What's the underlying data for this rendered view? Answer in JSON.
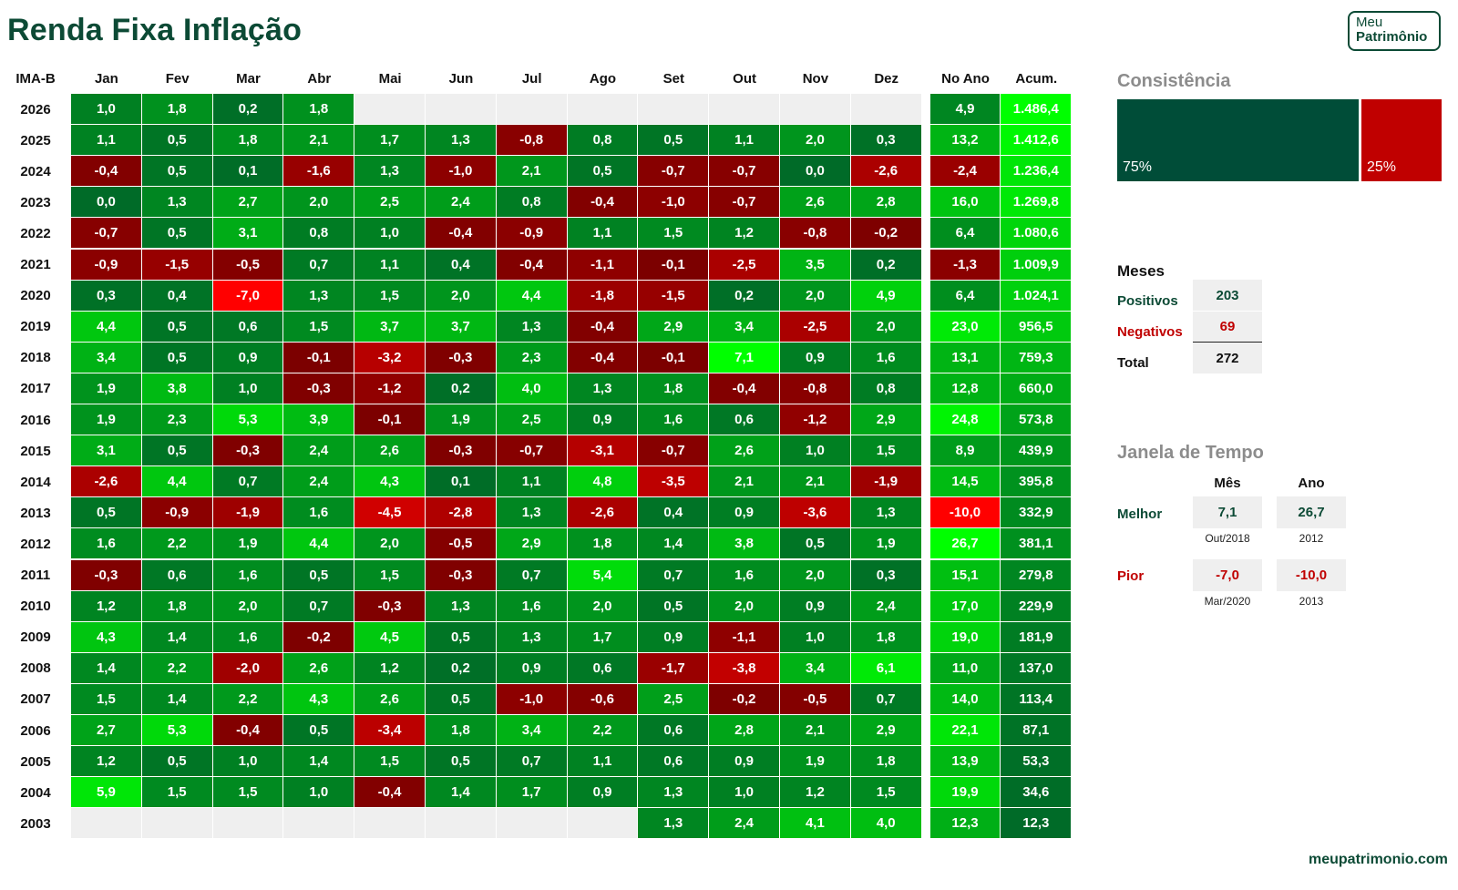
{
  "header": {
    "title": "Renda Fixa Inflação",
    "logo_line1": "Meu",
    "logo_line2": "Patrimônio"
  },
  "chart_data": {
    "type": "heatmap",
    "index_label": "IMA-B",
    "columns": [
      "Jan",
      "Fev",
      "Mar",
      "Abr",
      "Mai",
      "Jun",
      "Jul",
      "Ago",
      "Set",
      "Out",
      "Nov",
      "Dez"
    ],
    "summary_columns": [
      "No Ano",
      "Acum."
    ],
    "rows": [
      {
        "year": "2026",
        "values": [
          "1,0",
          "1,8",
          "0,2",
          "1,8",
          "",
          "",
          "",
          "",
          "",
          "",
          "",
          ""
        ],
        "no_ano": "4,9",
        "acum": "1.486,4"
      },
      {
        "year": "2025",
        "values": [
          "1,1",
          "0,5",
          "1,8",
          "2,1",
          "1,7",
          "1,3",
          "-0,8",
          "0,8",
          "0,5",
          "1,1",
          "2,0",
          "0,3"
        ],
        "no_ano": "13,2",
        "acum": "1.412,6"
      },
      {
        "year": "2024",
        "values": [
          "-0,4",
          "0,5",
          "0,1",
          "-1,6",
          "1,3",
          "-1,0",
          "2,1",
          "0,5",
          "-0,7",
          "-0,7",
          "0,0",
          "-2,6"
        ],
        "no_ano": "-2,4",
        "acum": "1.236,4"
      },
      {
        "year": "2023",
        "values": [
          "0,0",
          "1,3",
          "2,7",
          "2,0",
          "2,5",
          "2,4",
          "0,8",
          "-0,4",
          "-1,0",
          "-0,7",
          "2,6",
          "2,8"
        ],
        "no_ano": "16,0",
        "acum": "1.269,8"
      },
      {
        "year": "2022",
        "values": [
          "-0,7",
          "0,5",
          "3,1",
          "0,8",
          "1,0",
          "-0,4",
          "-0,9",
          "1,1",
          "1,5",
          "1,2",
          "-0,8",
          "-0,2"
        ],
        "no_ano": "6,4",
        "acum": "1.080,6"
      },
      {
        "year": "2021",
        "values": [
          "-0,9",
          "-1,5",
          "-0,5",
          "0,7",
          "1,1",
          "0,4",
          "-0,4",
          "-1,1",
          "-0,1",
          "-2,5",
          "3,5",
          "0,2"
        ],
        "no_ano": "-1,3",
        "acum": "1.009,9"
      },
      {
        "year": "2020",
        "values": [
          "0,3",
          "0,4",
          "-7,0",
          "1,3",
          "1,5",
          "2,0",
          "4,4",
          "-1,8",
          "-1,5",
          "0,2",
          "2,0",
          "4,9"
        ],
        "no_ano": "6,4",
        "acum": "1.024,1"
      },
      {
        "year": "2019",
        "values": [
          "4,4",
          "0,5",
          "0,6",
          "1,5",
          "3,7",
          "3,7",
          "1,3",
          "-0,4",
          "2,9",
          "3,4",
          "-2,5",
          "2,0"
        ],
        "no_ano": "23,0",
        "acum": "956,5"
      },
      {
        "year": "2018",
        "values": [
          "3,4",
          "0,5",
          "0,9",
          "-0,1",
          "-3,2",
          "-0,3",
          "2,3",
          "-0,4",
          "-0,1",
          "7,1",
          "0,9",
          "1,6"
        ],
        "no_ano": "13,1",
        "acum": "759,3"
      },
      {
        "year": "2017",
        "values": [
          "1,9",
          "3,8",
          "1,0",
          "-0,3",
          "-1,2",
          "0,2",
          "4,0",
          "1,3",
          "1,8",
          "-0,4",
          "-0,8",
          "0,8"
        ],
        "no_ano": "12,8",
        "acum": "660,0"
      },
      {
        "year": "2016",
        "values": [
          "1,9",
          "2,3",
          "5,3",
          "3,9",
          "-0,1",
          "1,9",
          "2,5",
          "0,9",
          "1,6",
          "0,6",
          "-1,2",
          "2,9"
        ],
        "no_ano": "24,8",
        "acum": "573,8"
      },
      {
        "year": "2015",
        "values": [
          "3,1",
          "0,5",
          "-0,3",
          "2,4",
          "2,6",
          "-0,3",
          "-0,7",
          "-3,1",
          "-0,7",
          "2,6",
          "1,0",
          "1,5"
        ],
        "no_ano": "8,9",
        "acum": "439,9"
      },
      {
        "year": "2014",
        "values": [
          "-2,6",
          "4,4",
          "0,7",
          "2,4",
          "4,3",
          "0,1",
          "1,1",
          "4,8",
          "-3,5",
          "2,1",
          "2,1",
          "-1,9"
        ],
        "no_ano": "14,5",
        "acum": "395,8"
      },
      {
        "year": "2013",
        "values": [
          "0,5",
          "-0,9",
          "-1,9",
          "1,6",
          "-4,5",
          "-2,8",
          "1,3",
          "-2,6",
          "0,4",
          "0,9",
          "-3,6",
          "1,3"
        ],
        "no_ano": "-10,0",
        "acum": "332,9"
      },
      {
        "year": "2012",
        "values": [
          "1,6",
          "2,2",
          "1,9",
          "4,4",
          "2,0",
          "-0,5",
          "2,9",
          "1,8",
          "1,4",
          "3,8",
          "0,5",
          "1,9"
        ],
        "no_ano": "26,7",
        "acum": "381,1"
      },
      {
        "year": "2011",
        "values": [
          "-0,3",
          "0,6",
          "1,6",
          "0,5",
          "1,5",
          "-0,3",
          "0,7",
          "5,4",
          "0,7",
          "1,6",
          "2,0",
          "0,3"
        ],
        "no_ano": "15,1",
        "acum": "279,8"
      },
      {
        "year": "2010",
        "values": [
          "1,2",
          "1,8",
          "2,0",
          "0,7",
          "-0,3",
          "1,3",
          "1,6",
          "2,0",
          "0,5",
          "2,0",
          "0,9",
          "2,4"
        ],
        "no_ano": "17,0",
        "acum": "229,9"
      },
      {
        "year": "2009",
        "values": [
          "4,3",
          "1,4",
          "1,6",
          "-0,2",
          "4,5",
          "0,5",
          "1,3",
          "1,7",
          "0,9",
          "-1,1",
          "1,0",
          "1,8"
        ],
        "no_ano": "19,0",
        "acum": "181,9"
      },
      {
        "year": "2008",
        "values": [
          "1,4",
          "2,2",
          "-2,0",
          "2,6",
          "1,2",
          "0,2",
          "0,9",
          "0,6",
          "-1,7",
          "-3,8",
          "3,4",
          "6,1"
        ],
        "no_ano": "11,0",
        "acum": "137,0"
      },
      {
        "year": "2007",
        "values": [
          "1,5",
          "1,4",
          "2,2",
          "4,3",
          "2,6",
          "0,5",
          "-1,0",
          "-0,6",
          "2,5",
          "-0,2",
          "-0,5",
          "0,7"
        ],
        "no_ano": "14,0",
        "acum": "113,4"
      },
      {
        "year": "2006",
        "values": [
          "2,7",
          "5,3",
          "-0,4",
          "0,5",
          "-3,4",
          "1,8",
          "3,4",
          "2,2",
          "0,6",
          "2,8",
          "2,1",
          "2,9"
        ],
        "no_ano": "22,1",
        "acum": "87,1"
      },
      {
        "year": "2005",
        "values": [
          "1,2",
          "0,5",
          "1,0",
          "1,4",
          "1,5",
          "0,5",
          "0,7",
          "1,1",
          "0,6",
          "0,9",
          "1,9",
          "1,8"
        ],
        "no_ano": "13,9",
        "acum": "53,3"
      },
      {
        "year": "2004",
        "values": [
          "5,9",
          "1,5",
          "1,5",
          "1,0",
          "-0,4",
          "1,4",
          "1,7",
          "0,9",
          "1,3",
          "1,0",
          "1,2",
          "1,5"
        ],
        "no_ano": "19,9",
        "acum": "34,6"
      },
      {
        "year": "2003",
        "values": [
          "",
          "",
          "",
          "",
          "",
          "",
          "",
          "",
          "1,3",
          "2,4",
          "4,1",
          "4,0"
        ],
        "no_ano": "12,3",
        "acum": "12,3"
      }
    ],
    "colors": {
      "positive_dark": "#006b28",
      "positive_bright": "#00ff00",
      "negative_dark": "#7a0000",
      "negative_bright": "#ff0000",
      "empty": "#efefef"
    }
  },
  "consistency": {
    "title": "Consistência",
    "positive_pct": 75,
    "negative_pct": 25,
    "positive_label": "75%",
    "negative_label": "25%",
    "positive_color": "#004d38",
    "negative_color": "#c00000"
  },
  "months": {
    "title": "Meses",
    "positive_label": "Positivos",
    "positive_value": "203",
    "negative_label": "Negativos",
    "negative_value": "69",
    "total_label": "Total",
    "total_value": "272"
  },
  "window": {
    "title": "Janela de Tempo",
    "col_month": "Mês",
    "col_year": "Ano",
    "best_label": "Melhor",
    "best_month": "7,1",
    "best_month_date": "Out/2018",
    "best_year": "26,7",
    "best_year_date": "2012",
    "worst_label": "Pior",
    "worst_month": "-7,0",
    "worst_month_date": "Mar/2020",
    "worst_year": "-10,0",
    "worst_year_date": "2013"
  },
  "footer": {
    "site": "meupatrimonio.com"
  }
}
